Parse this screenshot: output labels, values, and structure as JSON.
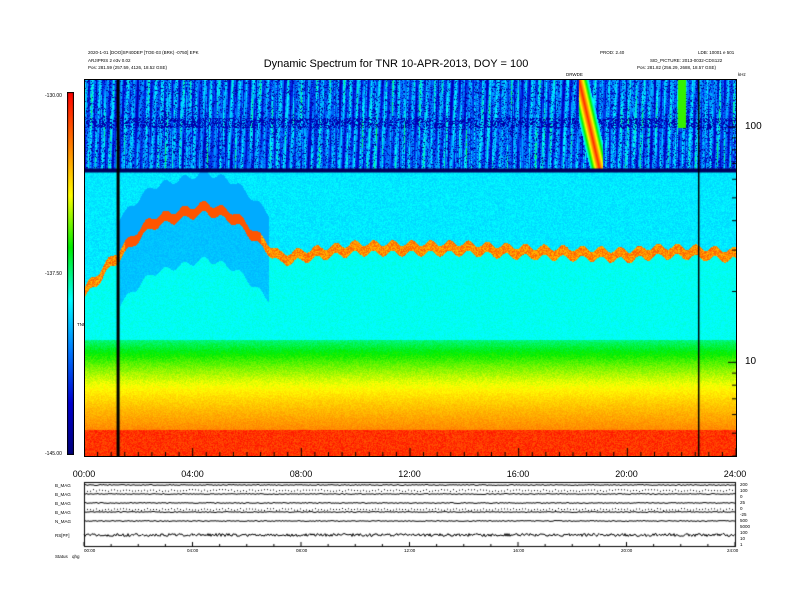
{
  "header": {
    "title": "Dynamic Spectrum for TNR 10-APR-2013, DOY = 100",
    "left_line1": "2020-1-01 [DOO]SP40DEP [TOE-03 (BRK) -0750] EPK",
    "left_line2": "ARJIPRIS 2 e3v 0.02",
    "left_line3": "Pos:    281.59 (257.59, 4126, 18.52 GSE)",
    "right_line1": "PROD: 2.40",
    "right_line2": "LDB: 10001 e 501",
    "right_line3": "SID_PICTURE: 2013-0032-CDS122",
    "right_line4": "Pos:    281.82 (256.29, 2688, 18.57 GSE)",
    "right_corner": "kHz",
    "marker_label": "DRWDE"
  },
  "colorbar": {
    "max_label": "-130.00",
    "mid_label": "-137.50",
    "min_label": "-145.00",
    "unit_label": "TNR",
    "stops": [
      "#ff0000",
      "#ff7a00",
      "#ffff00",
      "#00ee00",
      "#00ffff",
      "#0078ff",
      "#0000d0",
      "#00007a"
    ]
  },
  "footer": {
    "label1": "Status",
    "label2": "qhg"
  },
  "panel": {
    "row_labels": [
      "B_MAG",
      "B_MAG",
      "B_MAG",
      "B_MAG",
      "N_MAG",
      "RS[PF]"
    ],
    "right_labels": [
      "200",
      "100",
      "0",
      "25",
      "0",
      "-25",
      "500",
      "5000",
      "100",
      "10",
      "1"
    ],
    "tick_labels": [
      "00:00",
      "04:00",
      "08:00",
      "12:00",
      "16:00",
      "20:00",
      "24:00"
    ]
  },
  "chart_data": {
    "type": "heatmap",
    "title": "Dynamic Spectrum for TNR 10-APR-2013, DOY = 100",
    "x_tick_labels": [
      "00:00",
      "04:00",
      "08:00",
      "12:00",
      "16:00",
      "20:00",
      "24:00"
    ],
    "x_hours": [
      0,
      4,
      8,
      12,
      16,
      20,
      24
    ],
    "xlim": [
      0,
      24
    ],
    "y_tick_labels": [
      "100",
      "10"
    ],
    "y_ticks_khz": [
      100,
      10
    ],
    "y_scale": "log",
    "ylim_khz": [
      4,
      160
    ],
    "colorbar_range": [
      -145,
      -130
    ],
    "vertical_markers_hours": [
      1.2,
      22.6
    ],
    "features": {
      "broadband_emission": {
        "freq_khz_range": [
          60,
          160
        ],
        "level": "blue-cyan streaks"
      },
      "upper_band_edge_khz": 66,
      "plasma_line_khz": [
        [
          0.0,
          20
        ],
        [
          0.6,
          24
        ],
        [
          1.5,
          31
        ],
        [
          2.5,
          40
        ],
        [
          3.5,
          43
        ],
        [
          4.5,
          46
        ],
        [
          5.5,
          42
        ],
        [
          6.5,
          33
        ],
        [
          7.2,
          28
        ],
        [
          9.0,
          30
        ],
        [
          10.0,
          31
        ],
        [
          12.0,
          31
        ],
        [
          14.0,
          31
        ],
        [
          16.0,
          30
        ],
        [
          18.0,
          29.5
        ],
        [
          20.0,
          29
        ],
        [
          21.0,
          30
        ],
        [
          22.0,
          30
        ],
        [
          24.0,
          29
        ]
      ],
      "type_iii_burst": {
        "start_hours": 18.2,
        "end_hours": 19.1,
        "freq_khz_range": [
          70,
          160
        ]
      },
      "secondary_burst": {
        "hours": 22.0,
        "freq_khz_range": [
          100,
          160
        ]
      },
      "thermal_noise_floor_khz": 5.2
    }
  }
}
